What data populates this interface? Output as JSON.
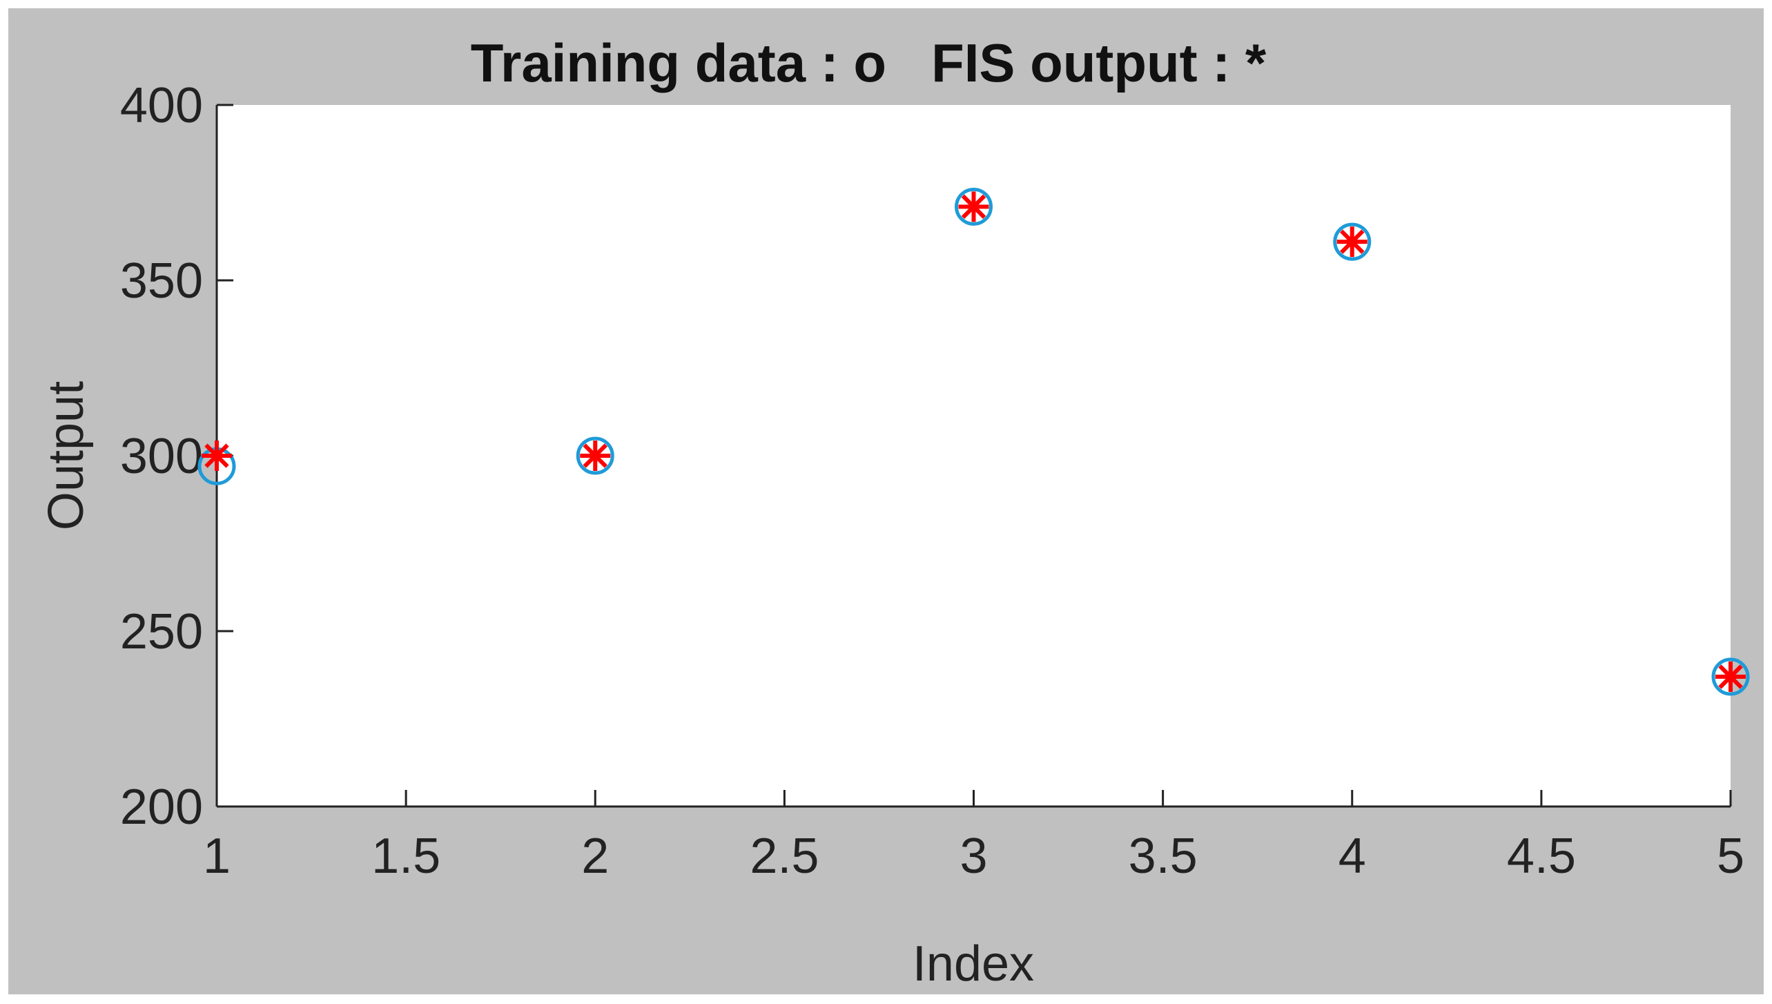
{
  "chart_data": {
    "type": "scatter",
    "title": "Training data : o   FIS output : *",
    "xlabel": "Index",
    "ylabel": "Output",
    "xlim": [
      1,
      5
    ],
    "ylim": [
      200,
      400
    ],
    "xticks": [
      "1",
      "1.5",
      "2",
      "2.5",
      "3",
      "3.5",
      "4",
      "4.5",
      "5"
    ],
    "yticks": [
      "200",
      "250",
      "300",
      "350",
      "400"
    ],
    "grid": false,
    "series": [
      {
        "marker": "o",
        "color": "#1f9bd8",
        "x": [
          1,
          2,
          3,
          4,
          5
        ],
        "y": [
          297,
          300,
          371,
          361,
          237
        ]
      },
      {
        "marker": "*",
        "color": "#ff0000",
        "x": [
          1,
          2,
          3,
          4,
          5
        ],
        "y": [
          300,
          300,
          371,
          361,
          237
        ]
      }
    ]
  },
  "colors": {
    "figure_background": "#c0c0c0",
    "axes_background": "#ffffff",
    "axis_line": "#222222"
  }
}
